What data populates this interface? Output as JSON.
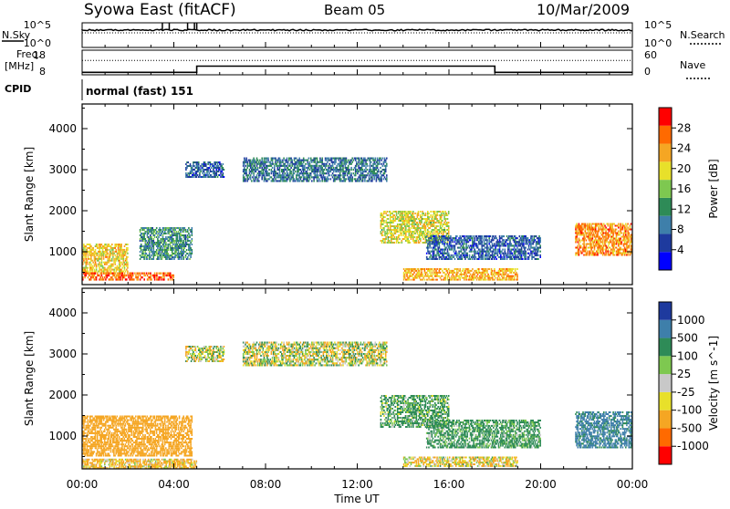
{
  "header": {
    "station": "Syowa East (fitACF)",
    "beam": "Beam 05",
    "date": "10/Mar/2009"
  },
  "top_panels": {
    "nsky_label": "N.Sky",
    "nsearch_label": "N.Search",
    "noise_ticks": [
      "10^5",
      "10^0"
    ],
    "freq_label": "Freq.",
    "freq_unit": "[MHz]",
    "freq_ticks": [
      "18",
      "8"
    ],
    "nave_label": "Nave",
    "nave_ticks": [
      "60",
      "0"
    ],
    "cpid_label": "CPID",
    "cpid_value": "normal (fast) 151",
    "frequency_segments": [
      {
        "start_h": 0,
        "end_h": 5.0,
        "freq_mhz": 9.0
      },
      {
        "start_h": 5.0,
        "end_h": 18.0,
        "freq_mhz": 11.5
      },
      {
        "start_h": 18.0,
        "end_h": 24.0,
        "freq_mhz": 9.0
      }
    ],
    "nave_level": 35,
    "nsky_spikes_h": [
      3.5,
      3.8,
      4.6,
      4.9,
      5.0
    ]
  },
  "colors": {
    "power_scale": [
      "#0000ff",
      "#1e3a9e",
      "#3e7faa",
      "#2e8b57",
      "#7ec850",
      "#e8e02a",
      "#f5a623",
      "#ff6a00",
      "#ff0000"
    ],
    "velocity_scale": [
      "#ff0000",
      "#ff6a00",
      "#f5a623",
      "#e8e02a",
      "#c8c8c8",
      "#7ec850",
      "#2e8b57",
      "#3e7faa",
      "#1e3a9e"
    ]
  },
  "chart_data": [
    {
      "type": "heatmap",
      "panel": "power",
      "ylabel": "Slant Range [km]",
      "xlabel": "Time UT",
      "ylim": [
        200,
        4600
      ],
      "xlim_hours": [
        0,
        24
      ],
      "yticks": [
        "4000",
        "3000",
        "2000",
        "1000"
      ],
      "xticks": [
        "00:00",
        "04:00",
        "08:00",
        "12:00",
        "16:00",
        "20:00",
        "00:00"
      ],
      "colorbar_label": "Power [dB]",
      "colorbar_ticks": [
        "28",
        "24",
        "20",
        "16",
        "12",
        "8",
        "4"
      ],
      "colorbar_range": [
        0,
        30
      ],
      "regions": [
        {
          "t0": 0.0,
          "t1": 2.0,
          "r0": 500,
          "r1": 1200,
          "level": 20
        },
        {
          "t0": 0.0,
          "t1": 4.0,
          "r0": 300,
          "r1": 500,
          "level": 26
        },
        {
          "t0": 2.5,
          "t1": 4.8,
          "r0": 800,
          "r1": 1600,
          "level": 10
        },
        {
          "t0": 4.5,
          "t1": 6.2,
          "r0": 2800,
          "r1": 3200,
          "level": 6
        },
        {
          "t0": 7.0,
          "t1": 13.3,
          "r0": 2700,
          "r1": 3300,
          "level": 8
        },
        {
          "t0": 13.0,
          "t1": 16.0,
          "r0": 1200,
          "r1": 2000,
          "level": 18
        },
        {
          "t0": 15.0,
          "t1": 20.0,
          "r0": 800,
          "r1": 1400,
          "level": 6
        },
        {
          "t0": 14.0,
          "t1": 19.0,
          "r0": 300,
          "r1": 600,
          "level": 22
        },
        {
          "t0": 21.5,
          "t1": 24.0,
          "r0": 900,
          "r1": 1700,
          "level": 24
        }
      ]
    },
    {
      "type": "heatmap",
      "panel": "velocity",
      "ylabel": "Slant Range [km]",
      "xlabel": "Time UT",
      "ylim": [
        200,
        4600
      ],
      "xlim_hours": [
        0,
        24
      ],
      "yticks": [
        "4000",
        "3000",
        "2000",
        "1000"
      ],
      "xticks": [
        "00:00",
        "04:00",
        "08:00",
        "12:00",
        "16:00",
        "20:00",
        "00:00"
      ],
      "colorbar_label": "Velocity [m s^-1]",
      "colorbar_ticks": [
        "1000",
        "500",
        "100",
        "25",
        "-25",
        "-100",
        "-500",
        "-1000"
      ],
      "regions": [
        {
          "t0": 0.0,
          "t1": 4.8,
          "r0": 500,
          "r1": 1500,
          "vel": -300
        },
        {
          "t0": 0.0,
          "t1": 5.0,
          "r0": 200,
          "r1": 450,
          "vel": -150
        },
        {
          "t0": 4.5,
          "t1": 6.2,
          "r0": 2800,
          "r1": 3200,
          "vel": 0
        },
        {
          "t0": 7.0,
          "t1": 13.3,
          "r0": 2700,
          "r1": 3300,
          "vel": 0
        },
        {
          "t0": 13.0,
          "t1": 16.0,
          "r0": 1200,
          "r1": 2000,
          "vel": 150
        },
        {
          "t0": 15.0,
          "t1": 20.0,
          "r0": 700,
          "r1": 1400,
          "vel": 200
        },
        {
          "t0": 14.0,
          "t1": 19.0,
          "r0": 250,
          "r1": 500,
          "vel": -80
        },
        {
          "t0": 21.5,
          "t1": 24.0,
          "r0": 700,
          "r1": 1600,
          "vel": 600
        }
      ]
    }
  ]
}
